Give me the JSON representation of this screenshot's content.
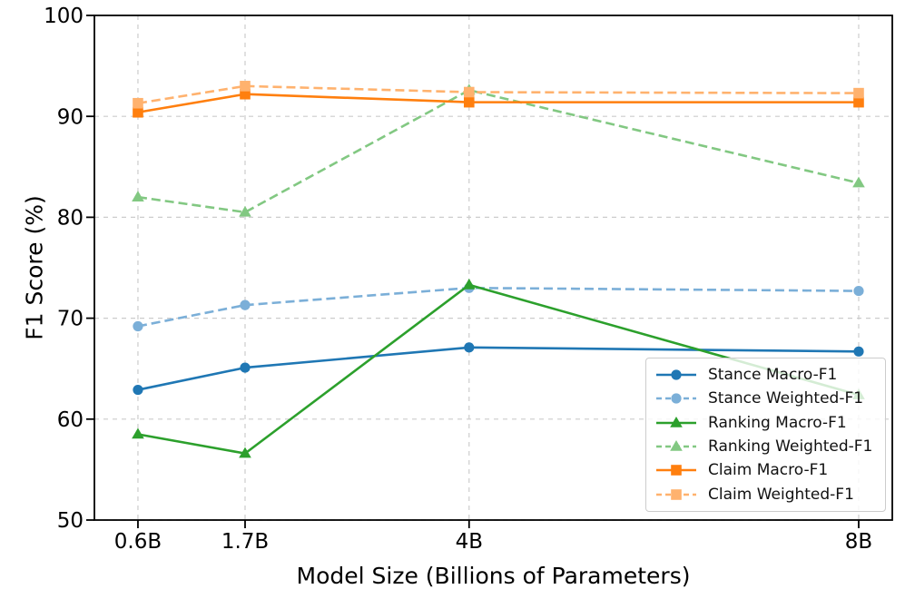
{
  "chart_data": {
    "type": "line",
    "title": "",
    "xlabel": "Model Size (Billions of Parameters)",
    "ylabel": "F1 Score (%)",
    "x": [
      0.6,
      1.7,
      4,
      8
    ],
    "x_tick_labels": [
      "0.6B",
      "1.7B",
      "4B",
      "8B"
    ],
    "y_ticks": [
      50,
      60,
      70,
      80,
      90,
      100
    ],
    "y_tick_labels": [
      "50",
      "60",
      "70",
      "80",
      "90",
      "100"
    ],
    "ylim": [
      50,
      100
    ],
    "xlim": [
      0.153,
      8.345
    ],
    "grid": true,
    "grid_color": "#cccccc",
    "legend_position": "lower right",
    "series": [
      {
        "name": "Stance Macro-F1",
        "color": "#1f77b4",
        "style": "solid",
        "marker": "circle",
        "values": [
          62.9,
          65.1,
          67.1,
          66.7
        ]
      },
      {
        "name": "Stance Weighted-F1",
        "color": "#7bafd8",
        "style": "dashed",
        "marker": "circle",
        "values": [
          69.2,
          71.3,
          73.0,
          72.7
        ]
      },
      {
        "name": "Ranking Macro-F1",
        "color": "#2ca02c",
        "style": "solid",
        "marker": "triangle",
        "values": [
          58.5,
          56.6,
          73.3,
          62.4
        ]
      },
      {
        "name": "Ranking Weighted-F1",
        "color": "#82c882",
        "style": "dashed",
        "marker": "triangle",
        "values": [
          82.0,
          80.5,
          92.6,
          83.4
        ]
      },
      {
        "name": "Claim Macro-F1",
        "color": "#ff7f0e",
        "style": "solid",
        "marker": "square",
        "values": [
          90.4,
          92.2,
          91.4,
          91.4
        ]
      },
      {
        "name": "Claim Weighted-F1",
        "color": "#ffb26e",
        "style": "dashed",
        "marker": "square",
        "values": [
          91.3,
          93.0,
          92.4,
          92.3
        ]
      }
    ]
  }
}
